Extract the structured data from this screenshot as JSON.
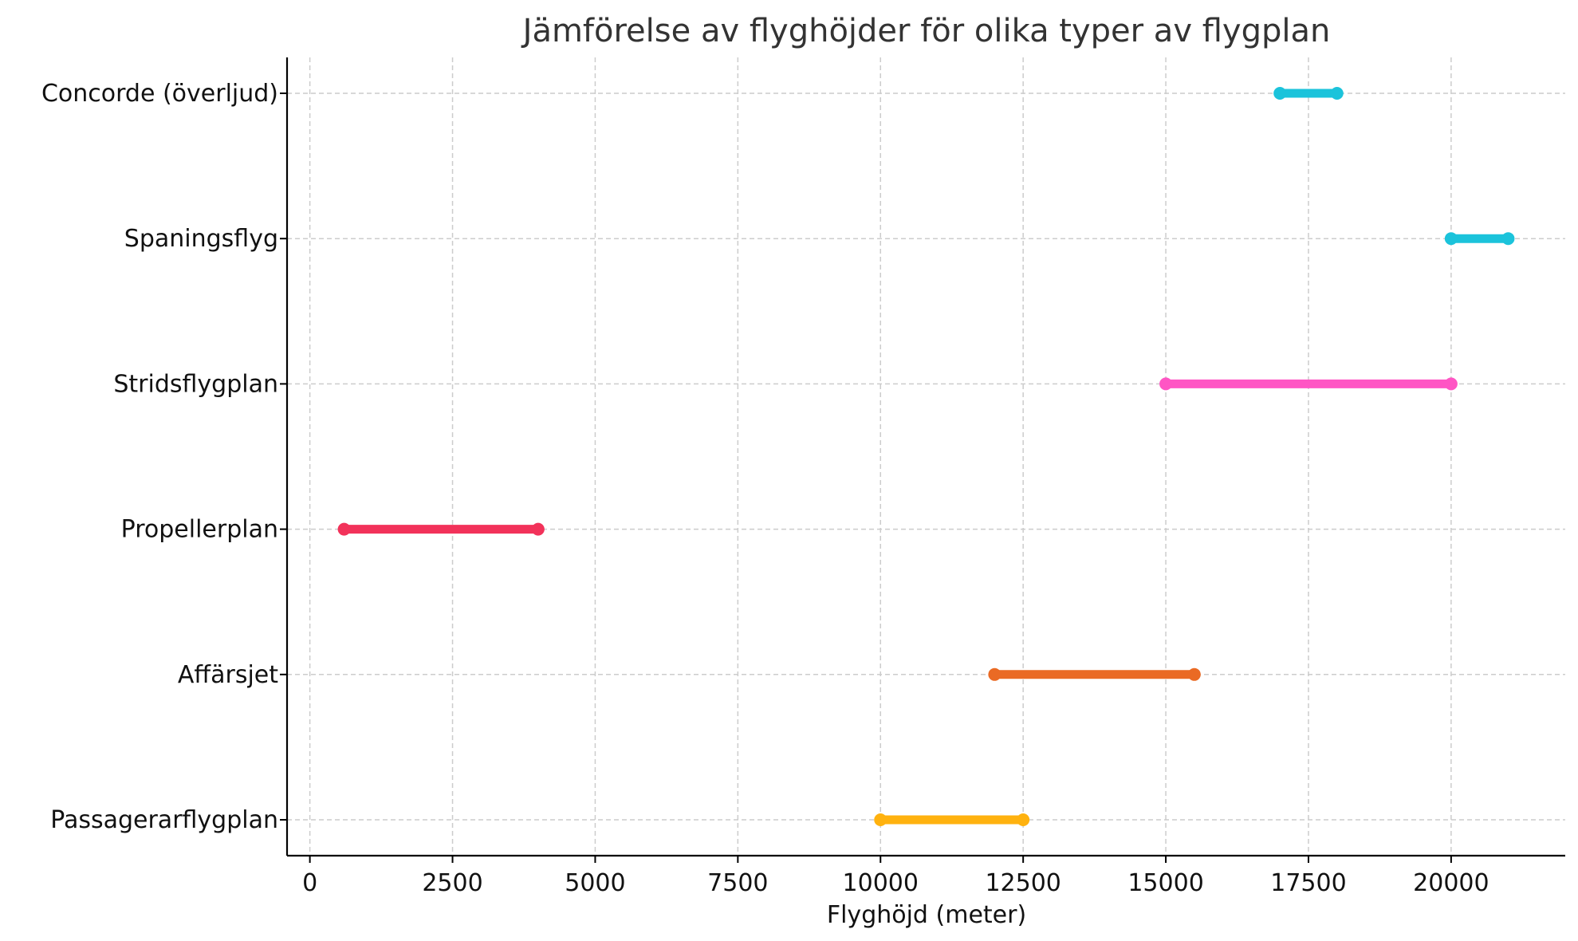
{
  "chart_data": {
    "type": "range",
    "title": "Jämförelse av flyghöjder för olika typer av flygplan",
    "xlabel": "Flyghöjd (meter)",
    "ylabel": "",
    "xlim": [
      -400,
      22000
    ],
    "xticks": [
      0,
      2500,
      5000,
      7500,
      10000,
      12500,
      15000,
      17500,
      20000
    ],
    "grid": true,
    "categories": [
      "Passagerarflygplan",
      "Affärsjet",
      "Propellerplan",
      "Stridsflygplan",
      "Spaningsflyg",
      "Concorde (överljud)"
    ],
    "ranges": [
      {
        "category": "Passagerarflygplan",
        "min": 10000,
        "max": 12500,
        "color": "#FFB20F"
      },
      {
        "category": "Affärsjet",
        "min": 12000,
        "max": 15500,
        "color": "#EA6A24"
      },
      {
        "category": "Propellerplan",
        "min": 600,
        "max": 4000,
        "color": "#F2325A"
      },
      {
        "category": "Stridsflygplan",
        "min": 15000,
        "max": 20000,
        "color": "#FF55C4"
      },
      {
        "category": "Spaningsflyg",
        "min": 20000,
        "max": 21000,
        "color": "#1BC3DB"
      },
      {
        "category": "Concorde (överljud)",
        "min": 17000,
        "max": 18000,
        "color": "#1BC3DB"
      }
    ]
  }
}
